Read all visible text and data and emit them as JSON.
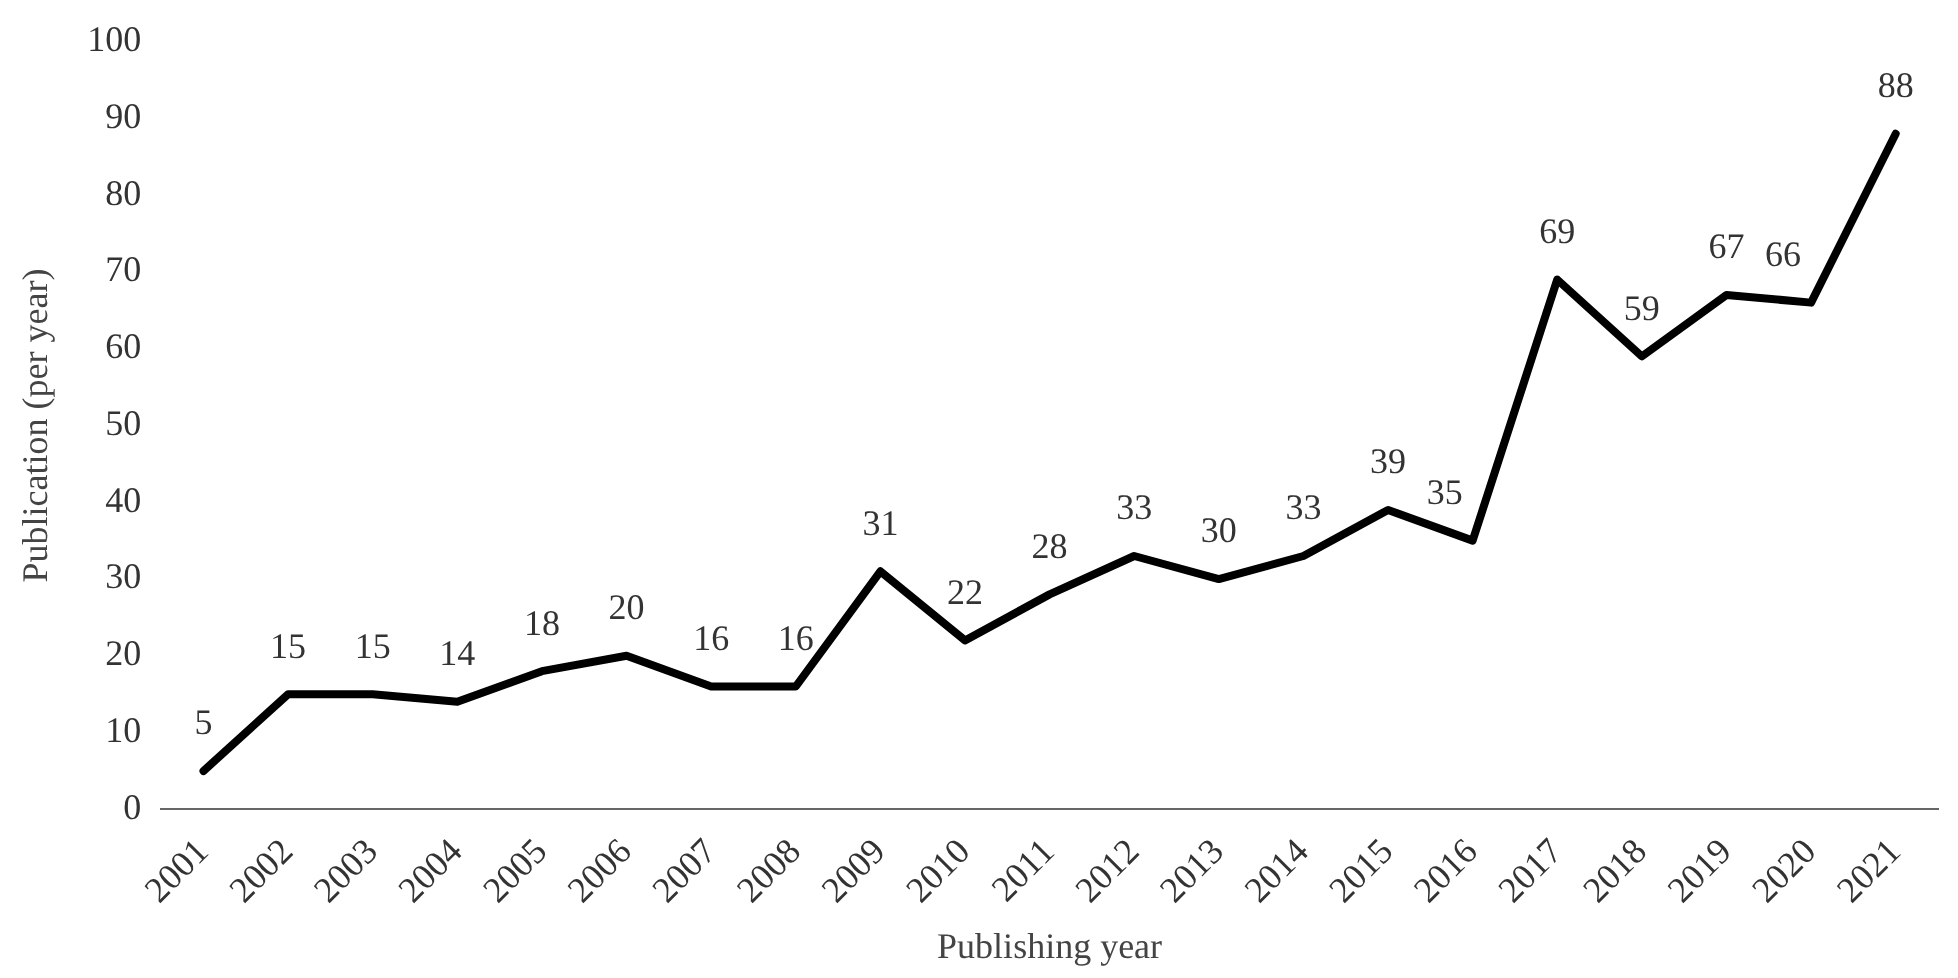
{
  "chart_data": {
    "type": "line",
    "xlabel": "Publishing year",
    "ylabel": "Publication (per year)",
    "categories": [
      "2001",
      "2002",
      "2003",
      "2004",
      "2005",
      "2006",
      "2007",
      "2008",
      "2009",
      "2010",
      "2011",
      "2012",
      "2013",
      "2014",
      "2015",
      "2016",
      "2017",
      "2018",
      "2019",
      "2020",
      "2021"
    ],
    "series": [
      {
        "color": "#000000",
        "values": [
          5,
          15,
          15,
          14,
          18,
          20,
          16,
          16,
          31,
          22,
          28,
          33,
          30,
          33,
          39,
          35,
          69,
          59,
          67,
          66,
          88
        ]
      }
    ],
    "ylim": [
      0,
      100
    ],
    "yticks": [
      0,
      10,
      20,
      30,
      40,
      50,
      60,
      70,
      80,
      90,
      100
    ],
    "data_labels": true,
    "line_style": "solid"
  }
}
